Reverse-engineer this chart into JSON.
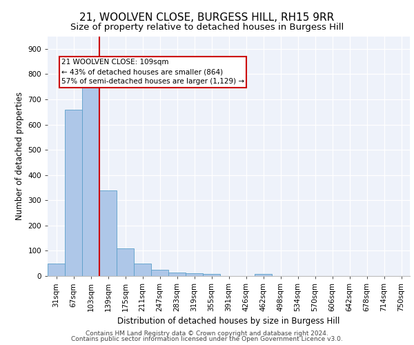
{
  "title1": "21, WOOLVEN CLOSE, BURGESS HILL, RH15 9RR",
  "title2": "Size of property relative to detached houses in Burgess Hill",
  "xlabel": "Distribution of detached houses by size in Burgess Hill",
  "ylabel": "Number of detached properties",
  "bar_labels": [
    "31sqm",
    "67sqm",
    "103sqm",
    "139sqm",
    "175sqm",
    "211sqm",
    "247sqm",
    "283sqm",
    "319sqm",
    "355sqm",
    "391sqm",
    "426sqm",
    "462sqm",
    "498sqm",
    "534sqm",
    "570sqm",
    "606sqm",
    "642sqm",
    "678sqm",
    "714sqm",
    "750sqm"
  ],
  "bar_values": [
    50,
    660,
    750,
    340,
    110,
    50,
    25,
    15,
    10,
    8,
    0,
    0,
    8,
    0,
    0,
    0,
    0,
    0,
    0,
    0,
    0
  ],
  "bar_color": "#aec7e8",
  "bar_edge_color": "#5a9ec9",
  "vline_x": 2.5,
  "vline_color": "#cc0000",
  "annotation_text": "21 WOOLVEN CLOSE: 109sqm\n← 43% of detached houses are smaller (864)\n57% of semi-detached houses are larger (1,129) →",
  "annotation_box_color": "#cc0000",
  "ylim": [
    0,
    950
  ],
  "yticks": [
    0,
    100,
    200,
    300,
    400,
    500,
    600,
    700,
    800,
    900
  ],
  "background_color": "#eef2fa",
  "footer1": "Contains HM Land Registry data © Crown copyright and database right 2024.",
  "footer2": "Contains public sector information licensed under the Open Government Licence v3.0.",
  "title1_fontsize": 11,
  "title2_fontsize": 9.5,
  "xlabel_fontsize": 8.5,
  "ylabel_fontsize": 8.5,
  "tick_fontsize": 7.5,
  "annotation_fontsize": 7.5,
  "footer_fontsize": 6.5
}
